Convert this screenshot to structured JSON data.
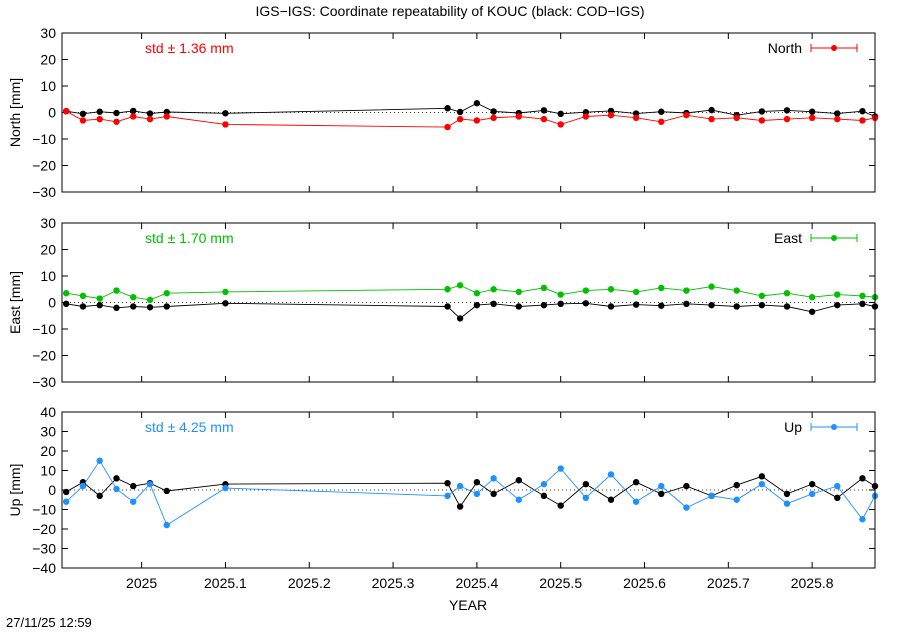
{
  "figure": {
    "title": "IGS−IGS: Coordinate repeatability of KOUC (black: COD−IGS)",
    "xlabel": "YEAR",
    "timestamp": "27/11/25 12:59",
    "reference_color": "#000000"
  },
  "chart_data": [
    {
      "type": "line",
      "panel": "north",
      "legend_label": "North",
      "legend_position": "top-right",
      "ylabel": "North [mm]",
      "std_text": "std ± 1.36 mm",
      "color": "#ff0000",
      "xlim": [
        2024.905,
        2025.875
      ],
      "ylim": [
        -30,
        30
      ],
      "xticks": [
        2025,
        2025.1,
        2025.2,
        2025.3,
        2025.4,
        2025.5,
        2025.6,
        2025.7,
        2025.8
      ],
      "xtick_labels": [
        "2025",
        "2025.1",
        "2025.2",
        "2025.3",
        "2025.4",
        "2025.5",
        "2025.6",
        "2025.7",
        "2025.8"
      ],
      "yticks": [
        -30,
        -20,
        -10,
        0,
        10,
        20,
        30
      ],
      "ytick_labels": [
        "−30",
        "−20",
        "−10",
        "0",
        "10",
        "20",
        "30"
      ],
      "zero_line": "dotted",
      "grid": false,
      "series": [
        {
          "role": "reference",
          "x": [
            2024.91,
            2024.93,
            2024.95,
            2024.97,
            2024.99,
            2025.01,
            2025.03,
            2025.1,
            2025.365,
            2025.38,
            2025.4,
            2025.42,
            2025.45,
            2025.48,
            2025.5,
            2025.53,
            2025.56,
            2025.59,
            2025.62,
            2025.65,
            2025.68,
            2025.71,
            2025.74,
            2025.77,
            2025.8,
            2025.83,
            2025.86,
            2025.875
          ],
          "y": [
            0.5,
            -0.5,
            0.3,
            -0.2,
            0.6,
            -0.4,
            0.2,
            -0.3,
            1.6,
            0.2,
            3.5,
            0.4,
            -0.2,
            0.8,
            -0.5,
            0.1,
            0.6,
            -0.4,
            0.3,
            -0.2,
            0.9,
            -1.0,
            0.4,
            0.8,
            0.3,
            -0.4,
            0.5,
            -1.5
          ]
        },
        {
          "role": "igs",
          "x": [
            2024.91,
            2024.93,
            2024.95,
            2024.97,
            2024.99,
            2025.01,
            2025.03,
            2025.1,
            2025.365,
            2025.38,
            2025.4,
            2025.42,
            2025.45,
            2025.48,
            2025.5,
            2025.53,
            2025.56,
            2025.59,
            2025.62,
            2025.65,
            2025.68,
            2025.71,
            2025.74,
            2025.77,
            2025.8,
            2025.83,
            2025.86,
            2025.875
          ],
          "y": [
            0.5,
            -3.0,
            -2.5,
            -3.5,
            -1.5,
            -2.5,
            -1.5,
            -4.5,
            -5.5,
            -2.5,
            -3.0,
            -2.0,
            -1.5,
            -2.5,
            -4.5,
            -1.5,
            -1.0,
            -2.0,
            -3.5,
            -1.0,
            -2.5,
            -2.0,
            -3.0,
            -2.5,
            -2.0,
            -2.5,
            -3.0,
            -2.0
          ]
        }
      ]
    },
    {
      "type": "line",
      "panel": "east",
      "legend_label": "East",
      "legend_position": "top-right",
      "ylabel": "East [mm]",
      "std_text": "std ± 1.70 mm",
      "color": "#00c000",
      "xlim": [
        2024.905,
        2025.875
      ],
      "ylim": [
        -30,
        30
      ],
      "xticks": [
        2025,
        2025.1,
        2025.2,
        2025.3,
        2025.4,
        2025.5,
        2025.6,
        2025.7,
        2025.8
      ],
      "xtick_labels": [
        "2025",
        "2025.1",
        "2025.2",
        "2025.3",
        "2025.4",
        "2025.5",
        "2025.6",
        "2025.7",
        "2025.8"
      ],
      "yticks": [
        -30,
        -20,
        -10,
        0,
        10,
        20,
        30
      ],
      "ytick_labels": [
        "−30",
        "−20",
        "−10",
        "0",
        "10",
        "20",
        "30"
      ],
      "zero_line": "dotted",
      "grid": false,
      "series": [
        {
          "role": "reference",
          "x": [
            2024.91,
            2024.93,
            2024.95,
            2024.97,
            2024.99,
            2025.01,
            2025.03,
            2025.1,
            2025.365,
            2025.38,
            2025.4,
            2025.42,
            2025.45,
            2025.48,
            2025.5,
            2025.53,
            2025.56,
            2025.59,
            2025.62,
            2025.65,
            2025.68,
            2025.71,
            2025.74,
            2025.77,
            2025.8,
            2025.83,
            2025.86,
            2025.875
          ],
          "y": [
            -0.5,
            -1.5,
            -1.0,
            -2.0,
            -1.5,
            -1.8,
            -1.5,
            -0.3,
            -1.5,
            -6.0,
            -1.0,
            -0.5,
            -1.5,
            -1.0,
            -0.5,
            -0.3,
            -1.5,
            -0.8,
            -1.2,
            -0.5,
            -1.0,
            -1.5,
            -1.0,
            -1.5,
            -3.5,
            -1.0,
            -0.5,
            -1.5
          ]
        },
        {
          "role": "igs",
          "x": [
            2024.91,
            2024.93,
            2024.95,
            2024.97,
            2024.99,
            2025.01,
            2025.03,
            2025.1,
            2025.365,
            2025.38,
            2025.4,
            2025.42,
            2025.45,
            2025.48,
            2025.5,
            2025.53,
            2025.56,
            2025.59,
            2025.62,
            2025.65,
            2025.68,
            2025.71,
            2025.74,
            2025.77,
            2025.8,
            2025.83,
            2025.86,
            2025.875
          ],
          "y": [
            3.5,
            2.5,
            1.5,
            4.5,
            2.0,
            1.0,
            3.5,
            4.0,
            5.0,
            6.5,
            3.5,
            5.0,
            4.0,
            5.5,
            3.0,
            4.5,
            5.0,
            4.0,
            5.5,
            4.5,
            6.0,
            4.5,
            2.5,
            3.5,
            2.0,
            3.0,
            2.5,
            2.0
          ]
        }
      ]
    },
    {
      "type": "line",
      "panel": "up",
      "legend_label": "Up",
      "legend_position": "top-right",
      "ylabel": "Up [mm]",
      "std_text": "std ± 4.25 mm",
      "color": "#1e90ff",
      "xlim": [
        2024.905,
        2025.875
      ],
      "ylim": [
        -40,
        40
      ],
      "xticks": [
        2025,
        2025.1,
        2025.2,
        2025.3,
        2025.4,
        2025.5,
        2025.6,
        2025.7,
        2025.8
      ],
      "xtick_labels": [
        "2025",
        "2025.1",
        "2025.2",
        "2025.3",
        "2025.4",
        "2025.5",
        "2025.6",
        "2025.7",
        "2025.8"
      ],
      "yticks": [
        -40,
        -30,
        -20,
        -10,
        0,
        10,
        20,
        30,
        40
      ],
      "ytick_labels": [
        "−40",
        "−30",
        "−20",
        "−10",
        "0",
        "10",
        "20",
        "30",
        "40"
      ],
      "zero_line": "dotted",
      "grid": false,
      "series": [
        {
          "role": "reference",
          "x": [
            2024.91,
            2024.93,
            2024.95,
            2024.97,
            2024.99,
            2025.01,
            2025.03,
            2025.1,
            2025.365,
            2025.38,
            2025.4,
            2025.42,
            2025.45,
            2025.48,
            2025.5,
            2025.53,
            2025.56,
            2025.59,
            2025.62,
            2025.65,
            2025.68,
            2025.71,
            2025.74,
            2025.77,
            2025.8,
            2025.83,
            2025.86,
            2025.875
          ],
          "y": [
            -1.0,
            4.0,
            -3.0,
            6.0,
            2.0,
            3.5,
            -0.5,
            3.0,
            3.5,
            -8.5,
            4.0,
            -2.0,
            5.0,
            -3.0,
            -8.0,
            3.0,
            -5.0,
            4.0,
            -2.0,
            2.0,
            -3.0,
            2.5,
            7.0,
            -2.0,
            3.0,
            -4.0,
            6.0,
            2.0
          ]
        },
        {
          "role": "igs",
          "x": [
            2024.91,
            2024.93,
            2024.95,
            2024.97,
            2024.99,
            2025.01,
            2025.03,
            2025.1,
            2025.365,
            2025.38,
            2025.4,
            2025.42,
            2025.45,
            2025.48,
            2025.5,
            2025.53,
            2025.56,
            2025.59,
            2025.62,
            2025.65,
            2025.68,
            2025.71,
            2025.74,
            2025.77,
            2025.8,
            2025.83,
            2025.86,
            2025.875
          ],
          "y": [
            -6.0,
            2.0,
            15.0,
            0.5,
            -6.0,
            3.0,
            -18.0,
            1.0,
            -3.0,
            2.0,
            -2.0,
            6.0,
            -5.0,
            3.0,
            11.0,
            -4.0,
            8.0,
            -6.0,
            2.0,
            -9.0,
            -3.0,
            -5.0,
            3.0,
            -7.0,
            -2.0,
            2.0,
            -15.0,
            -3.0
          ]
        }
      ]
    }
  ]
}
